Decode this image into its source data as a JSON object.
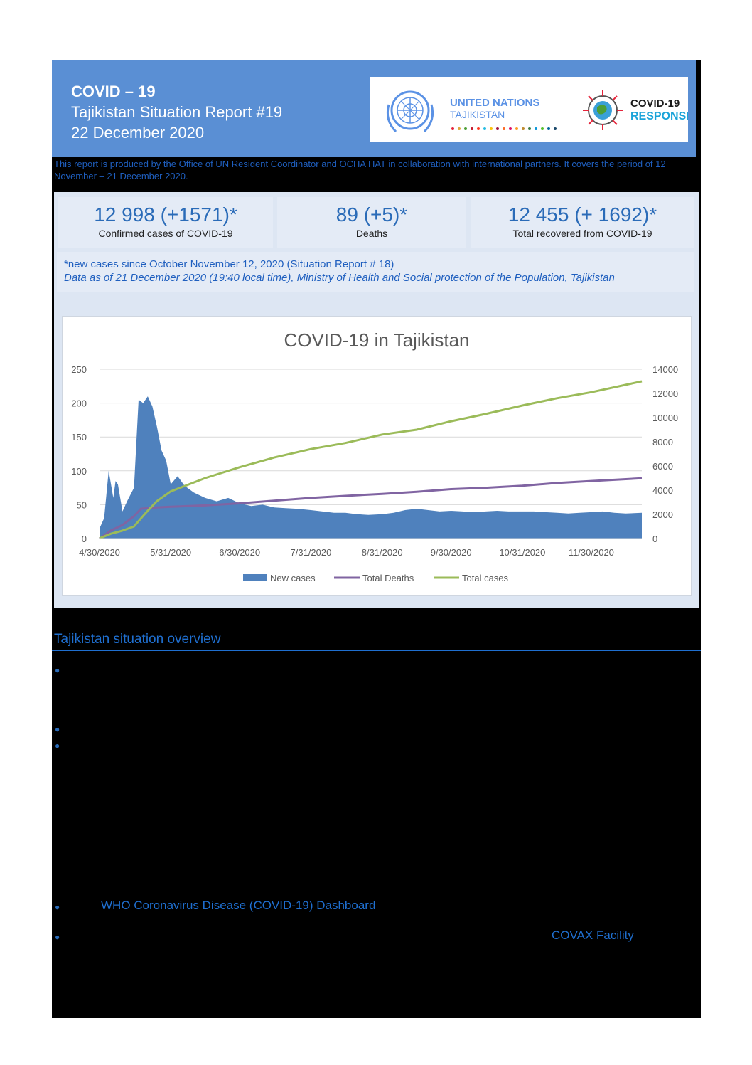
{
  "header": {
    "title": "COVID – 19",
    "subtitle": "Tajikistan Situation Report #19",
    "date": "22 December 2020",
    "logos": {
      "un_line1": "UNITED NATIONS",
      "un_line2": "TAJIKISTAN",
      "covid_line1": "COVID-19",
      "covid_line2": "RESPONSE"
    }
  },
  "intro": "This report is produced by the Office of UN Resident Coordinator and OCHA HAT in collaboration with international partners. It covers the period of 12 November – 21 December 2020.",
  "kpis": [
    {
      "value": "12 998 (+1571)*",
      "label": "Confirmed cases of COVID-19"
    },
    {
      "value": "89 (+5)*",
      "label": "Deaths"
    },
    {
      "value": "12 455 (+ 1692)*",
      "label": "Total recovered from COVID-19"
    }
  ],
  "note": {
    "line1": "*new cases since October November 12, 2020 (Situation Report # 18)",
    "line2": "Data as of 21 December 2020 (19:40 local time), Ministry of Health and Social protection of the Population, Tajikistan"
  },
  "chart_data": {
    "type": "area",
    "title": "COVID-19 in Tajikistan",
    "x_start": "4/30/2020",
    "x_end": "12/22/2020",
    "x_tick_labels": [
      "4/30/2020",
      "5/31/2020",
      "6/30/2020",
      "7/31/2020",
      "8/31/2020",
      "9/30/2020",
      "10/31/2020",
      "11/30/2020"
    ],
    "y_left_ticks": [
      "0",
      "50",
      "100",
      "150",
      "200",
      "250"
    ],
    "y_left_range": [
      0,
      250
    ],
    "y_right_ticks": [
      "0",
      "2000",
      "4000",
      "6000",
      "8000",
      "10000",
      "12000",
      "14000"
    ],
    "y_right_range": [
      0,
      14000
    ],
    "grid": true,
    "legend_position": "bottom",
    "series": [
      {
        "name": "New cases",
        "axis": "left",
        "color": "#4f81bd",
        "points": [
          [
            "4/30/2020",
            15
          ],
          [
            "5/2/2020",
            30
          ],
          [
            "5/4/2020",
            100
          ],
          [
            "5/6/2020",
            60
          ],
          [
            "5/7/2020",
            85
          ],
          [
            "5/8/2020",
            80
          ],
          [
            "5/10/2020",
            40
          ],
          [
            "5/12/2020",
            55
          ],
          [
            "5/15/2020",
            75
          ],
          [
            "5/17/2020",
            205
          ],
          [
            "5/19/2020",
            200
          ],
          [
            "5/21/2020",
            210
          ],
          [
            "5/23/2020",
            195
          ],
          [
            "5/25/2020",
            165
          ],
          [
            "5/27/2020",
            130
          ],
          [
            "5/29/2020",
            115
          ],
          [
            "5/31/2020",
            80
          ],
          [
            "6/3/2020",
            92
          ],
          [
            "6/6/2020",
            78
          ],
          [
            "6/10/2020",
            68
          ],
          [
            "6/15/2020",
            60
          ],
          [
            "6/20/2020",
            55
          ],
          [
            "6/25/2020",
            60
          ],
          [
            "6/30/2020",
            52
          ],
          [
            "7/5/2020",
            48
          ],
          [
            "7/10/2020",
            50
          ],
          [
            "7/15/2020",
            46
          ],
          [
            "7/20/2020",
            45
          ],
          [
            "7/25/2020",
            44
          ],
          [
            "7/31/2020",
            42
          ],
          [
            "8/5/2020",
            40
          ],
          [
            "8/10/2020",
            38
          ],
          [
            "8/15/2020",
            38
          ],
          [
            "8/20/2020",
            36
          ],
          [
            "8/25/2020",
            35
          ],
          [
            "8/31/2020",
            36
          ],
          [
            "9/5/2020",
            38
          ],
          [
            "9/10/2020",
            42
          ],
          [
            "9/15/2020",
            44
          ],
          [
            "9/20/2020",
            42
          ],
          [
            "9/25/2020",
            40
          ],
          [
            "9/30/2020",
            41
          ],
          [
            "10/5/2020",
            40
          ],
          [
            "10/10/2020",
            39
          ],
          [
            "10/15/2020",
            40
          ],
          [
            "10/20/2020",
            41
          ],
          [
            "10/25/2020",
            40
          ],
          [
            "10/31/2020",
            40
          ],
          [
            "11/5/2020",
            40
          ],
          [
            "11/10/2020",
            39
          ],
          [
            "11/15/2020",
            38
          ],
          [
            "11/20/2020",
            37
          ],
          [
            "11/25/2020",
            38
          ],
          [
            "11/30/2020",
            39
          ],
          [
            "12/5/2020",
            40
          ],
          [
            "12/10/2020",
            38
          ],
          [
            "12/15/2020",
            37
          ],
          [
            "12/22/2020",
            38
          ]
        ]
      },
      {
        "name": "Total Deaths",
        "axis": "left",
        "color": "#8064a2",
        "points": [
          [
            "4/30/2020",
            0
          ],
          [
            "5/5/2020",
            12
          ],
          [
            "5/10/2020",
            20
          ],
          [
            "5/15/2020",
            33
          ],
          [
            "5/18/2020",
            44
          ],
          [
            "5/25/2020",
            46
          ],
          [
            "5/31/2020",
            47
          ],
          [
            "6/15/2020",
            49
          ],
          [
            "6/30/2020",
            52
          ],
          [
            "7/15/2020",
            56
          ],
          [
            "7/31/2020",
            60
          ],
          [
            "8/15/2020",
            63
          ],
          [
            "8/31/2020",
            66
          ],
          [
            "9/15/2020",
            69
          ],
          [
            "9/30/2020",
            73
          ],
          [
            "10/15/2020",
            75
          ],
          [
            "10/31/2020",
            78
          ],
          [
            "11/15/2020",
            82
          ],
          [
            "11/30/2020",
            85
          ],
          [
            "12/22/2020",
            89
          ]
        ]
      },
      {
        "name": "Total cases",
        "axis": "right",
        "color": "#9bbb59",
        "points": [
          [
            "4/30/2020",
            15
          ],
          [
            "5/5/2020",
            400
          ],
          [
            "5/10/2020",
            650
          ],
          [
            "5/15/2020",
            1000
          ],
          [
            "5/20/2020",
            2100
          ],
          [
            "5/25/2020",
            3100
          ],
          [
            "5/31/2020",
            3900
          ],
          [
            "6/15/2020",
            5000
          ],
          [
            "6/30/2020",
            5900
          ],
          [
            "7/15/2020",
            6700
          ],
          [
            "7/31/2020",
            7400
          ],
          [
            "8/15/2020",
            7900
          ],
          [
            "8/31/2020",
            8600
          ],
          [
            "9/15/2020",
            9000
          ],
          [
            "9/30/2020",
            9700
          ],
          [
            "10/15/2020",
            10300
          ],
          [
            "10/31/2020",
            11000
          ],
          [
            "11/15/2020",
            11600
          ],
          [
            "11/30/2020",
            12100
          ],
          [
            "12/22/2020",
            12998
          ]
        ]
      }
    ]
  },
  "overview": {
    "title": "Tajikistan situation overview",
    "link_who": "WHO Coronavirus Disease (COVID-19) Dashboard",
    "link_covax": "COVAX  Facility"
  }
}
